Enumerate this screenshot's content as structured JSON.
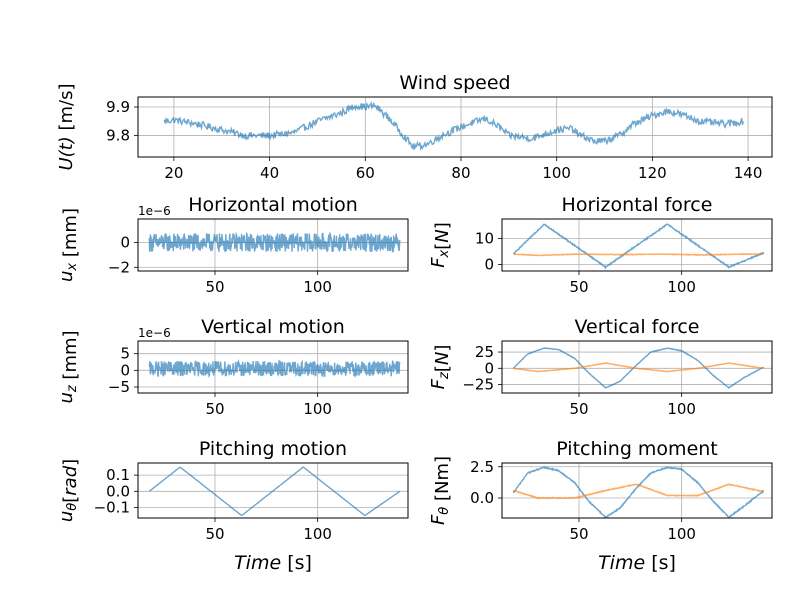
{
  "colors": {
    "series1": "#1f77b4",
    "series2": "#ff7f0e"
  },
  "chart_data": [
    {
      "id": "wind",
      "type": "line",
      "title": "Wind speed",
      "ylabel": "U(t) [m/s]",
      "xlabel": "",
      "xlim": [
        12.5,
        145
      ],
      "ylim": [
        9.725,
        9.935
      ],
      "xticks": [
        20,
        40,
        60,
        80,
        100,
        120,
        140
      ],
      "yticks": [
        9.8,
        9.9
      ],
      "yticklabels": [
        "9.8",
        "9.9"
      ],
      "grid": true,
      "series": [
        {
          "noise": 0.012,
          "x": [
            18,
            20,
            25,
            30,
            35,
            40,
            45,
            50,
            55,
            58,
            60,
            62,
            65,
            68,
            70,
            73,
            76,
            80,
            85,
            88,
            90,
            95,
            100,
            103,
            105,
            108,
            110,
            113,
            116,
            120,
            123,
            125,
            130,
            135,
            139
          ],
          "y": [
            9.85,
            9.855,
            9.84,
            9.82,
            9.8,
            9.8,
            9.81,
            9.85,
            9.88,
            9.905,
            9.9,
            9.905,
            9.86,
            9.8,
            9.76,
            9.77,
            9.8,
            9.83,
            9.86,
            9.83,
            9.8,
            9.79,
            9.82,
            9.825,
            9.8,
            9.78,
            9.78,
            9.8,
            9.84,
            9.87,
            9.885,
            9.88,
            9.85,
            9.84,
            9.85
          ]
        }
      ]
    },
    {
      "id": "hmotion",
      "type": "line",
      "title": "Horizontal motion",
      "ylabel": "u_x [mm]",
      "offset_label": "1e−6",
      "xlabel": "",
      "xlim": [
        12.5,
        144
      ],
      "ylim": [
        -2.3,
        1.9
      ],
      "xticks": [
        50,
        100
      ],
      "yticks": [
        0,
        -2
      ],
      "yticklabels": [
        "0",
        "−2"
      ],
      "grid": true,
      "series": [
        {
          "noise": 0.75,
          "x": [
            18,
            140
          ],
          "y": [
            0,
            0
          ]
        }
      ]
    },
    {
      "id": "hforce",
      "type": "line",
      "title": "Horizontal force",
      "ylabel": "F_x[N]",
      "xlabel": "",
      "xlim": [
        12.5,
        144
      ],
      "ylim": [
        -2.5,
        17.5
      ],
      "xticks": [
        50,
        100
      ],
      "yticks": [
        0,
        10
      ],
      "yticklabels": [
        "0",
        "10"
      ],
      "grid": true,
      "series": [
        {
          "noise": 0.2,
          "x": [
            18,
            33,
            63,
            93,
            123,
            140
          ],
          "y": [
            4,
            15.5,
            -1,
            15.5,
            -1,
            4.5
          ]
        },
        {
          "noise": 0.1,
          "x": [
            18,
            30,
            50,
            70,
            90,
            110,
            130,
            140
          ],
          "y": [
            4,
            3.5,
            4,
            3.8,
            4,
            3.7,
            4,
            4
          ]
        }
      ]
    },
    {
      "id": "vmotion",
      "type": "line",
      "title": "Vertical motion",
      "ylabel": "u_z [mm]",
      "offset_label": "1e−6",
      "xlabel": "",
      "xlim": [
        12.5,
        144
      ],
      "ylim": [
        -6.8,
        8.8
      ],
      "xticks": [
        50,
        100
      ],
      "yticks": [
        -5,
        0,
        5
      ],
      "yticklabels": [
        "−5",
        "0",
        "5"
      ],
      "grid": true,
      "series": [
        {
          "noise": 2.3,
          "x": [
            18,
            140
          ],
          "y": [
            0.5,
            0.5
          ]
        }
      ]
    },
    {
      "id": "vforce",
      "type": "line",
      "title": "Vertical force",
      "ylabel": "F_z[N]",
      "xlabel": "",
      "xlim": [
        12.5,
        144
      ],
      "ylim": [
        -38,
        42
      ],
      "xticks": [
        50,
        100
      ],
      "yticks": [
        -25,
        0,
        25
      ],
      "yticklabels": [
        "−25",
        "0",
        "25"
      ],
      "grid": true,
      "series": [
        {
          "noise": 0.4,
          "x": [
            18,
            25,
            33,
            40,
            48,
            55,
            63,
            70,
            78,
            85,
            93,
            100,
            108,
            115,
            123,
            130,
            140
          ],
          "y": [
            0,
            22,
            31,
            29,
            15,
            -8,
            -30,
            -20,
            5,
            25,
            31,
            27,
            12,
            -10,
            -30,
            -15,
            2
          ]
        },
        {
          "noise": 0.3,
          "x": [
            18,
            30,
            48,
            63,
            78,
            93,
            108,
            123,
            140
          ],
          "y": [
            0,
            -5,
            0,
            8,
            0,
            -5,
            0,
            8,
            0
          ]
        }
      ]
    },
    {
      "id": "pmotion",
      "type": "line",
      "title": "Pitching motion",
      "ylabel": "u_θ[rad]",
      "xlabel": "Time [s]",
      "xlim": [
        12.5,
        144
      ],
      "ylim": [
        -0.165,
        0.175
      ],
      "xticks": [
        50,
        100
      ],
      "yticks": [
        -0.1,
        0.0,
        0.1
      ],
      "yticklabels": [
        "−0.1",
        "0.0",
        "0.1"
      ],
      "grid": true,
      "series": [
        {
          "noise": 0,
          "x": [
            18,
            33,
            63,
            93,
            123,
            140
          ],
          "y": [
            0,
            0.15,
            -0.15,
            0.15,
            -0.15,
            0
          ]
        }
      ]
    },
    {
      "id": "pmoment",
      "type": "line",
      "title": "Pitching moment",
      "ylabel": "F_θ [Nm]",
      "xlabel": "Time [s]",
      "xlim": [
        12.5,
        144
      ],
      "ylim": [
        -1.6,
        2.8
      ],
      "xticks": [
        50,
        100
      ],
      "yticks": [
        0.0,
        2.5
      ],
      "yticklabels": [
        "0.0",
        "2.5"
      ],
      "grid": true,
      "series": [
        {
          "noise": 0.04,
          "x": [
            18,
            25,
            33,
            40,
            48,
            55,
            63,
            70,
            78,
            85,
            93,
            100,
            108,
            115,
            123,
            130,
            140
          ],
          "y": [
            0.4,
            2.0,
            2.45,
            2.2,
            1.2,
            -0.3,
            -1.55,
            -0.8,
            0.8,
            2.0,
            2.45,
            2.3,
            1.2,
            -0.2,
            -1.55,
            -0.7,
            0.6
          ]
        },
        {
          "noise": 0.03,
          "x": [
            18,
            30,
            48,
            63,
            78,
            93,
            108,
            123,
            140
          ],
          "y": [
            0.6,
            0.0,
            0.0,
            0.6,
            1.1,
            0.2,
            0.2,
            1.1,
            0.5
          ]
        }
      ]
    }
  ]
}
